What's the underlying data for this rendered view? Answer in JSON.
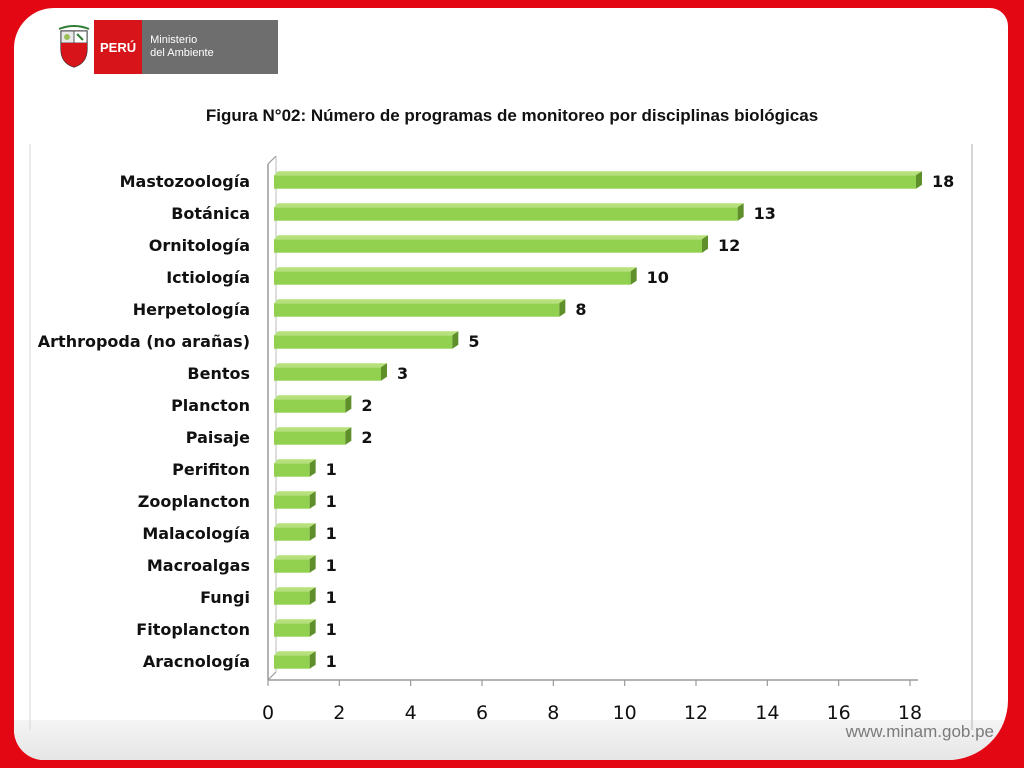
{
  "header": {
    "country_label": "PERÚ",
    "ministry_line1": "Ministerio",
    "ministry_line2": "del Ambiente"
  },
  "footer": {
    "website": "www.minam.gob.pe"
  },
  "colors": {
    "frame": "#e30613",
    "bar": "#92d050",
    "bar_dark": "#5e8f2a"
  },
  "chart_data": {
    "type": "bar",
    "orientation": "horizontal",
    "title": "Figura N°02: Número de programas de monitoreo por disciplinas biológicas",
    "categories": [
      "Mastozoología",
      "Botánica",
      "Ornitología",
      "Ictiología",
      "Herpetología",
      "Arthropoda (no arañas)",
      "Bentos",
      "Plancton",
      "Paisaje",
      "Perifiton",
      "Zooplancton",
      "Malacología",
      "Macroalgas",
      "Fungi",
      "Fitoplancton",
      "Aracnología"
    ],
    "values": [
      18,
      13,
      12,
      10,
      8,
      5,
      3,
      2,
      2,
      1,
      1,
      1,
      1,
      1,
      1,
      1
    ],
    "xlim": [
      0,
      18
    ],
    "xticks": [
      0,
      2,
      4,
      6,
      8,
      10,
      12,
      14,
      16,
      18
    ],
    "data_labels": true,
    "grid": false,
    "legend": "none"
  }
}
